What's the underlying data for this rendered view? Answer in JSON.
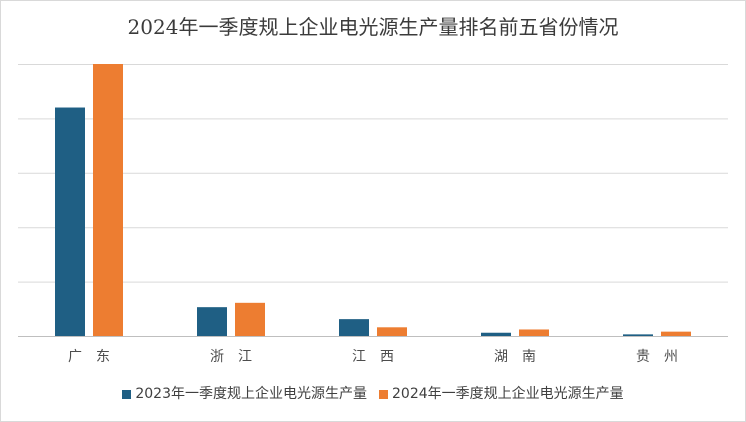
{
  "chart_data": {
    "type": "bar",
    "title": "2024年一季度规上企业电光源生产量排名前五省份情况",
    "xlabel": "",
    "ylabel": "",
    "categories": [
      "广　东",
      "浙　江",
      "江　西",
      "湖　南",
      "贵　州"
    ],
    "series": [
      {
        "name": "2023年一季度规上企业电光源生产量",
        "color": "#1F5F84",
        "values": [
          4.2,
          0.53,
          0.31,
          0.06,
          0.03
        ]
      },
      {
        "name": "2024年一季度规上企业电光源生产量",
        "color": "#ED7D31",
        "values": [
          5.0,
          0.61,
          0.16,
          0.12,
          0.08
        ]
      }
    ],
    "ylim": [
      0,
      5
    ],
    "y_tick_labels_shown": false,
    "grid": true,
    "legend": "bottom"
  }
}
